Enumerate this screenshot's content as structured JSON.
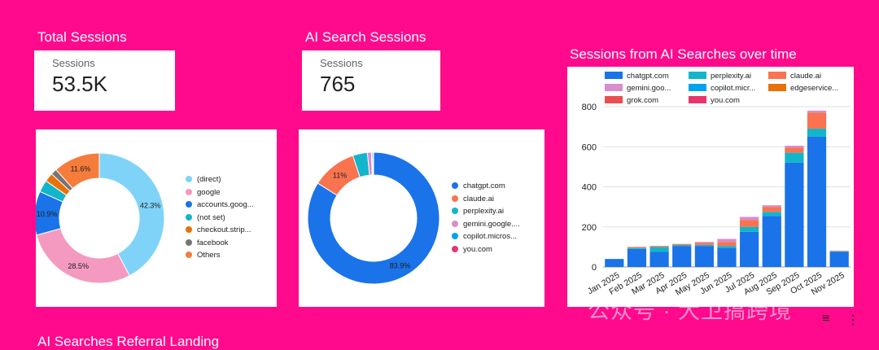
{
  "tiles": {
    "total": {
      "title": "Total Sessions",
      "label": "Sessions",
      "value": "53.5K"
    },
    "ai": {
      "title": "AI Search Sessions",
      "label": "Sessions",
      "value": "765"
    }
  },
  "bar_title": "Sessions from AI Searches over time",
  "bottom_title": "AI Searches Referral Landing",
  "watermark": "公众号 · 大卫搞跨境",
  "chart_data": [
    {
      "type": "pie",
      "name": "total-sessions-donut",
      "slices": [
        {
          "label": "(direct)",
          "value": 42.3,
          "color": "#80d3f8",
          "pct_label": "42.3%"
        },
        {
          "label": "google",
          "value": 28.5,
          "color": "#f49ac1",
          "pct_label": "28.5%"
        },
        {
          "label": "accounts.goog...",
          "value": 10.9,
          "color": "#1a73e8",
          "pct_label": "10.9%"
        },
        {
          "label": "(not set)",
          "value": 3.0,
          "color": "#12b5cb",
          "pct_label": ""
        },
        {
          "label": "checkout.strip...",
          "value": 2.2,
          "color": "#e8710a",
          "pct_label": ""
        },
        {
          "label": "facebook",
          "value": 1.5,
          "color": "#757575",
          "pct_label": ""
        },
        {
          "label": "Others",
          "value": 11.6,
          "color": "#f57c3b",
          "pct_label": "11.6%"
        }
      ]
    },
    {
      "type": "pie",
      "name": "ai-sessions-donut",
      "slices": [
        {
          "label": "chatgpt.com",
          "value": 83.9,
          "color": "#1a73e8",
          "pct_label": "83.9%"
        },
        {
          "label": "claude.ai",
          "value": 11,
          "color": "#f9734f",
          "pct_label": "11%"
        },
        {
          "label": "perplexity.ai",
          "value": 3.6,
          "color": "#12b5cb",
          "pct_label": ""
        },
        {
          "label": "gemini.google....",
          "value": 1.0,
          "color": "#d98dcc",
          "pct_label": ""
        },
        {
          "label": "copilot.micros...",
          "value": 0.3,
          "color": "#00a3f0",
          "pct_label": ""
        },
        {
          "label": "you.com",
          "value": 0.2,
          "color": "#e8356f",
          "pct_label": ""
        }
      ]
    },
    {
      "type": "bar",
      "stacked": true,
      "name": "ai-sessions-over-time",
      "categories": [
        "Jan 2025",
        "Feb 2025",
        "Mar 2025",
        "Apr 2025",
        "May 2025",
        "Jun 2025",
        "Jul 2025",
        "Aug 2025",
        "Sep 2025",
        "Oct 2025",
        "Nov 2025"
      ],
      "ylim": [
        0,
        800
      ],
      "yticks": [
        0,
        200,
        400,
        600,
        800
      ],
      "grid": true,
      "legend_position": "top",
      "series": [
        {
          "name": "chatgpt.com",
          "color": "#1a73e8",
          "values": [
            40,
            90,
            75,
            105,
            105,
            95,
            175,
            255,
            520,
            650,
            75
          ]
        },
        {
          "name": "perplexity.ai",
          "color": "#12b5cb",
          "values": [
            0,
            5,
            25,
            5,
            5,
            10,
            25,
            20,
            50,
            40,
            3
          ]
        },
        {
          "name": "claude.ai",
          "color": "#f9734f",
          "values": [
            0,
            5,
            5,
            5,
            10,
            20,
            35,
            25,
            25,
            80,
            2
          ]
        },
        {
          "name": "gemini.goo...",
          "color": "#d98dcc",
          "values": [
            0,
            0,
            0,
            0,
            5,
            15,
            15,
            8,
            10,
            10,
            2
          ]
        },
        {
          "name": "copilot.micr...",
          "color": "#00a3f0",
          "values": [
            0,
            0,
            0,
            0,
            0,
            0,
            0,
            0,
            0,
            0,
            0
          ]
        },
        {
          "name": "edgeservice...",
          "color": "#e8710a",
          "values": [
            0,
            0,
            0,
            0,
            0,
            0,
            0,
            0,
            0,
            0,
            0
          ]
        },
        {
          "name": "grok.com",
          "color": "#ea4f4f",
          "values": [
            0,
            0,
            0,
            0,
            0,
            0,
            0,
            0,
            0,
            0,
            0
          ]
        },
        {
          "name": "you.com",
          "color": "#e8356f",
          "values": [
            0,
            0,
            0,
            0,
            0,
            0,
            0,
            0,
            0,
            0,
            0
          ]
        }
      ]
    }
  ]
}
